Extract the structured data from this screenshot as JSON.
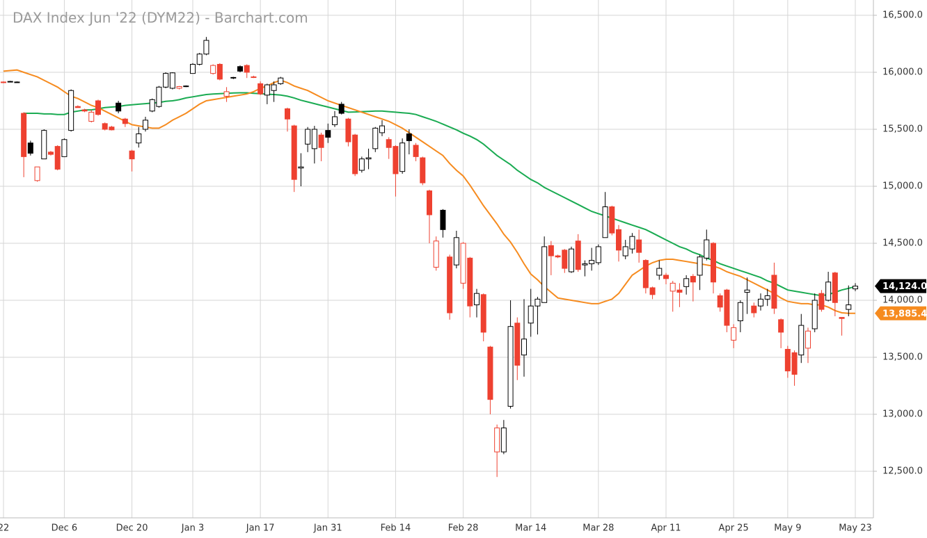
{
  "chart_data": {
    "type": "candlestick",
    "title": "DAX Index Jun '22 (DYM22) - Barchart.com",
    "categories": [
      "22",
      null,
      null,
      null,
      null,
      null,
      null,
      null,
      null,
      "Dec 6",
      null,
      null,
      null,
      null,
      null,
      null,
      null,
      null,
      null,
      "Dec 20",
      null,
      null,
      null,
      null,
      null,
      null,
      null,
      null,
      "Jan 3",
      null,
      null,
      null,
      null,
      null,
      null,
      null,
      null,
      null,
      "Jan 17",
      null,
      null,
      null,
      null,
      null,
      null,
      null,
      null,
      null,
      "Jan 31",
      null,
      null,
      null,
      null,
      null,
      null,
      null,
      null,
      null,
      "Feb 14",
      null,
      null,
      null,
      null,
      null,
      null,
      null,
      null,
      null,
      "Feb 28",
      null,
      null,
      null,
      null,
      null,
      null,
      null,
      null,
      null,
      "Mar 14",
      null,
      null,
      null,
      null,
      null,
      null,
      null,
      null,
      null,
      "Mar 28",
      null,
      null,
      null,
      null,
      null,
      null,
      null,
      null,
      null,
      "Apr 11",
      null,
      null,
      null,
      null,
      null,
      null,
      null,
      null,
      null,
      "Apr 25",
      null,
      null,
      null,
      null,
      null,
      null,
      null,
      "May 9",
      null,
      null,
      null,
      null,
      null,
      null,
      null,
      null,
      null,
      "May 23"
    ],
    "open": [
      15915,
      15920,
      15915,
      15640,
      15380,
      15050,
      15240,
      15300,
      15350,
      15260,
      15490,
      15700,
      15670,
      15570,
      15750,
      15550,
      15520,
      15730,
      15590,
      15310,
      15380,
      15500,
      15660,
      15700,
      15870,
      15860,
      15860,
      15880,
      15990,
      16070,
      16160,
      15990,
      16070,
      15790,
      15950,
      16050,
      16060,
      15960,
      15900,
      15800,
      15840,
      15900,
      15680,
      15530,
      15160,
      15370,
      15330,
      15450,
      15490,
      15540,
      15720,
      15590,
      15450,
      15140,
      15240,
      15330,
      15470,
      15410,
      15350,
      15130,
      15460,
      15360,
      15250,
      14960,
      14290,
      14790,
      14380,
      14310,
      14150,
      14370,
      13960,
      14050,
      13590,
      12670,
      12670,
      13070,
      13800,
      13520,
      13800,
      13950,
      13980,
      14480,
      14390,
      14440,
      14250,
      14520,
      14310,
      14320,
      14330,
      14550,
      14820,
      14620,
      14390,
      14450,
      14530,
      14350,
      14110,
      14220,
      14220,
      14080,
      14090,
      14120,
      14210,
      14220,
      14370,
      14500,
      14040,
      14090,
      13650,
      13820,
      14070,
      13950,
      13950,
      14010,
      14220,
      13830,
      13570,
      13540,
      13520,
      13580,
      13750,
      14060,
      14000,
      14240,
      13850,
      13920,
      14100
    ],
    "high": [
      15920,
      15925,
      15920,
      15650,
      15400,
      15170,
      15500,
      15310,
      15360,
      15420,
      15850,
      15710,
      15680,
      15670,
      15760,
      15560,
      15530,
      15750,
      15600,
      15320,
      15520,
      15610,
      15770,
      15880,
      16000,
      16000,
      15880,
      15885,
      16080,
      16170,
      16310,
      16070,
      16080,
      15870,
      15960,
      16060,
      16070,
      15970,
      15920,
      15900,
      15920,
      15960,
      15690,
      15540,
      15290,
      15520,
      15530,
      15470,
      15550,
      15660,
      15740,
      15600,
      15460,
      15260,
      15330,
      15520,
      15580,
      15430,
      15360,
      15420,
      15500,
      15380,
      15260,
      14970,
      14560,
      14800,
      14400,
      14610,
      14510,
      14380,
      14100,
      14060,
      13600,
      12910,
      12950,
      14000,
      13850,
      14010,
      14100,
      14030,
      14560,
      14520,
      14400,
      14450,
      14470,
      14580,
      14350,
      14460,
      14490,
      14950,
      14830,
      14660,
      14530,
      14590,
      14620,
      14360,
      14120,
      14350,
      14240,
      14170,
      14150,
      14220,
      14230,
      14400,
      14620,
      14510,
      14060,
      14100,
      13790,
      14000,
      14200,
      13980,
      14060,
      14100,
      14330,
      13840,
      13600,
      13560,
      13880,
      13760,
      14060,
      14090,
      14250,
      14250,
      13850,
      14130,
      14150
    ],
    "low": [
      15905,
      15915,
      15910,
      15080,
      15270,
      15040,
      15240,
      15270,
      15140,
      15260,
      15480,
      15690,
      15650,
      15560,
      15620,
      15490,
      15490,
      15640,
      15520,
      15130,
      15340,
      15480,
      15650,
      15690,
      15860,
      15850,
      15850,
      15870,
      15990,
      16060,
      16150,
      15980,
      15930,
      15740,
      15940,
      16000,
      15950,
      15950,
      15800,
      15720,
      15740,
      15890,
      15480,
      14950,
      15000,
      15300,
      15200,
      15220,
      15380,
      15520,
      15630,
      15350,
      15090,
      15120,
      15150,
      15300,
      15440,
      15240,
      14910,
      15110,
      15280,
      15220,
      15010,
      14500,
      14260,
      14550,
      13830,
      14280,
      14100,
      13850,
      13850,
      13640,
      13000,
      12450,
      12650,
      13050,
      13300,
      13330,
      13680,
      13700,
      13980,
      14220,
      14370,
      14240,
      14240,
      14250,
      14210,
      14260,
      14310,
      14550,
      14570,
      14340,
      14360,
      14410,
      14330,
      14060,
      14010,
      14180,
      14140,
      13900,
      13940,
      14050,
      13990,
      14090,
      14350,
      14060,
      13900,
      13720,
      13580,
      13720,
      13880,
      13850,
      13910,
      13950,
      13880,
      13580,
      13320,
      13250,
      13450,
      13450,
      13720,
      13900,
      13990,
      13860,
      13690,
      13860,
      14080
    ],
    "close": [
      15910,
      15915,
      15915,
      15260,
      15290,
      15170,
      15490,
      15280,
      15150,
      15410,
      15840,
      15690,
      15660,
      15650,
      15630,
      15500,
      15495,
      15660,
      15550,
      15240,
      15460,
      15580,
      15760,
      15870,
      15990,
      15995,
      15875,
      15880,
      16070,
      16160,
      16280,
      16060,
      15940,
      15830,
      15955,
      16010,
      16000,
      15960,
      15810,
      15890,
      15890,
      15950,
      15590,
      15060,
      15170,
      15500,
      15500,
      15340,
      15430,
      15610,
      15640,
      15390,
      15110,
      15240,
      15250,
      15510,
      15530,
      15340,
      15110,
      15380,
      15400,
      15260,
      15030,
      14750,
      14520,
      14620,
      13890,
      14550,
      14500,
      13950,
      14060,
      13720,
      13130,
      12880,
      12880,
      13770,
      13430,
      13660,
      13950,
      14010,
      14470,
      14390,
      14380,
      14280,
      14450,
      14270,
      14320,
      14350,
      14470,
      14820,
      14590,
      14440,
      14470,
      14560,
      14420,
      14110,
      14050,
      14280,
      14190,
      14150,
      14070,
      14190,
      14160,
      14380,
      14530,
      14160,
      13940,
      13780,
      13760,
      13980,
      14090,
      13890,
      14010,
      14040,
      13930,
      13720,
      13380,
      13350,
      13780,
      13730,
      14000,
      13920,
      14160,
      13980,
      13840,
      13960,
      14124
    ],
    "last_label": "14,124.0",
    "up_color": "#000000",
    "down_color": "#ee4130",
    "series": [
      {
        "color": "#1aab52",
        "values": [
          null,
          null,
          null,
          15640,
          15640,
          15640,
          15635,
          15635,
          15630,
          15630,
          15650,
          15660,
          15670,
          15670,
          15680,
          15690,
          15695,
          15700,
          15710,
          15715,
          15720,
          15725,
          15730,
          15735,
          15745,
          15750,
          15760,
          15775,
          15785,
          15795,
          15805,
          15810,
          15812,
          15815,
          15818,
          15820,
          15820,
          15815,
          15812,
          15808,
          15805,
          15800,
          15790,
          15775,
          15755,
          15740,
          15725,
          15710,
          15695,
          15680,
          15665,
          15650,
          15652,
          15655,
          15657,
          15660,
          15660,
          15655,
          15650,
          15645,
          15640,
          15630,
          15610,
          15590,
          15570,
          15545,
          15520,
          15495,
          15465,
          15440,
          15410,
          15370,
          15320,
          15270,
          15230,
          15190,
          15140,
          15100,
          15060,
          15030,
          14990,
          14960,
          14930,
          14900,
          14870,
          14840,
          14810,
          14780,
          14760,
          14740,
          14720,
          14700,
          14680,
          14660,
          14640,
          14620,
          14590,
          14560,
          14530,
          14500,
          14470,
          14450,
          14420,
          14400,
          14370,
          14350,
          14320,
          14300,
          14280,
          14260,
          14240,
          14220,
          14200,
          14170,
          14150,
          14120,
          14090,
          14080,
          14070,
          14060,
          14050,
          14040,
          14050,
          14070,
          14090,
          14105,
          14120
        ]
      },
      {
        "color": "#f68b1f",
        "end_label": "13,885.4",
        "values": [
          16010,
          16015,
          16020,
          16000,
          15980,
          15960,
          15930,
          15900,
          15870,
          15830,
          15790,
          15770,
          15740,
          15710,
          15690,
          15660,
          15630,
          15600,
          15570,
          15540,
          15530,
          15520,
          15510,
          15510,
          15540,
          15580,
          15610,
          15640,
          15680,
          15720,
          15750,
          15760,
          15770,
          15780,
          15790,
          15800,
          15810,
          15830,
          15860,
          15880,
          15910,
          15930,
          15910,
          15880,
          15860,
          15840,
          15810,
          15780,
          15750,
          15730,
          15710,
          15690,
          15670,
          15650,
          15630,
          15610,
          15590,
          15570,
          15540,
          15510,
          15470,
          15430,
          15390,
          15350,
          15310,
          15270,
          15200,
          15140,
          15090,
          15010,
          14920,
          14830,
          14750,
          14670,
          14580,
          14510,
          14420,
          14320,
          14230,
          14180,
          14120,
          14070,
          14020,
          14010,
          14000,
          13990,
          13980,
          13970,
          13970,
          13990,
          14010,
          14060,
          14140,
          14220,
          14260,
          14300,
          14330,
          14350,
          14360,
          14360,
          14350,
          14340,
          14330,
          14320,
          14310,
          14300,
          14280,
          14250,
          14230,
          14210,
          14180,
          14150,
          14120,
          14090,
          14060,
          14020,
          13990,
          13980,
          13970,
          13970,
          13960,
          13960,
          13940,
          13910,
          13890,
          13886,
          13885.4
        ]
      }
    ],
    "ylim": [
      12250,
      16650
    ],
    "yticks": [
      {
        "value": 12500,
        "label": "12,500.0"
      },
      {
        "value": 13000,
        "label": "13,000.0"
      },
      {
        "value": 13500,
        "label": "13,500.0"
      },
      {
        "value": 14000,
        "label": "14,000.0"
      },
      {
        "value": 14500,
        "label": "14,500.0"
      },
      {
        "value": 15000,
        "label": "15,000.0"
      },
      {
        "value": 15500,
        "label": "15,500.0"
      },
      {
        "value": 16000,
        "label": "16,000.0"
      },
      {
        "value": 16500,
        "label": "16,500.0"
      }
    ],
    "grid": true
  }
}
